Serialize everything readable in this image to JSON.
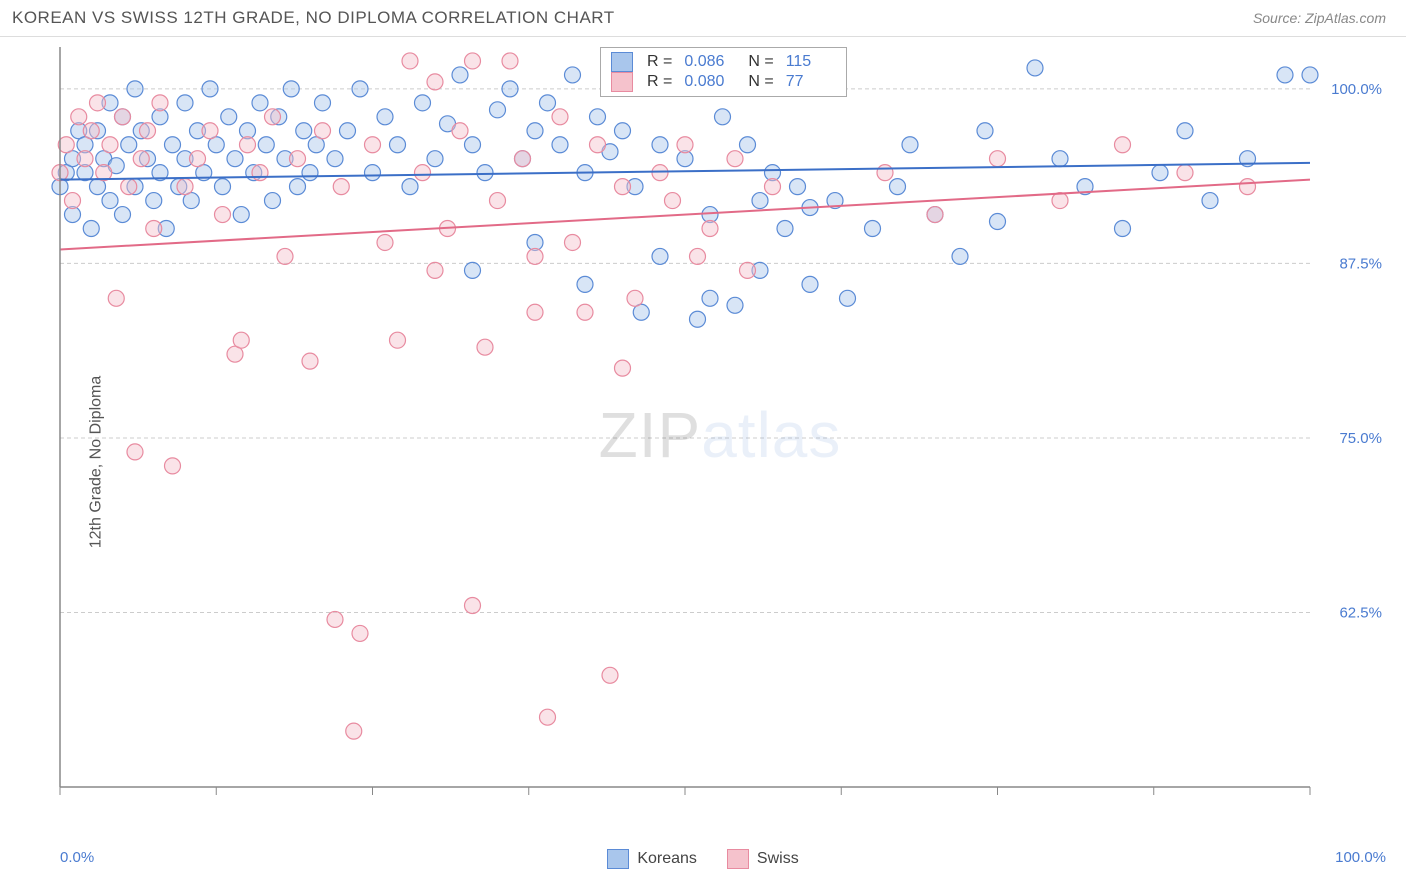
{
  "header": {
    "title": "KOREAN VS SWISS 12TH GRADE, NO DIPLOMA CORRELATION CHART",
    "source": "Source: ZipAtlas.com"
  },
  "chart": {
    "type": "scatter",
    "ylabel": "12th Grade, No Diploma",
    "xlim": [
      0,
      100
    ],
    "ylim": [
      50,
      103
    ],
    "xtick_major": [
      0,
      12.5,
      25,
      37.5,
      50,
      62.5,
      75,
      87.5,
      100
    ],
    "xtick_labels_shown": {
      "0": "0.0%",
      "100": "100.0%"
    },
    "ytick_positions": [
      62.5,
      75,
      87.5,
      100
    ],
    "ytick_labels": [
      "62.5%",
      "75.0%",
      "87.5%",
      "100.0%"
    ],
    "grid_color": "#cccccc",
    "axis_color": "#888888",
    "background_color": "#ffffff",
    "marker_radius": 8,
    "marker_opacity": 0.45,
    "marker_stroke_width": 1.2,
    "line_width": 2,
    "watermark_text_a": "ZIP",
    "watermark_text_b": "atlas",
    "series": [
      {
        "name": "Koreans",
        "color_fill": "#a9c6ec",
        "color_stroke": "#5b8bd6",
        "line_color": "#3b6fc7",
        "R": "0.086",
        "N": "115",
        "trend": {
          "y_at_x0": 93.5,
          "y_at_x100": 94.7
        },
        "points": [
          [
            0,
            93
          ],
          [
            0.5,
            94
          ],
          [
            1,
            95
          ],
          [
            1,
            91
          ],
          [
            1.5,
            97
          ],
          [
            2,
            94
          ],
          [
            2,
            96
          ],
          [
            2.5,
            90
          ],
          [
            3,
            97
          ],
          [
            3,
            93
          ],
          [
            3.5,
            95
          ],
          [
            4,
            99
          ],
          [
            4,
            92
          ],
          [
            4.5,
            94.5
          ],
          [
            5,
            98
          ],
          [
            5,
            91
          ],
          [
            5.5,
            96
          ],
          [
            6,
            93
          ],
          [
            6,
            100
          ],
          [
            6.5,
            97
          ],
          [
            7,
            95
          ],
          [
            7.5,
            92
          ],
          [
            8,
            98
          ],
          [
            8,
            94
          ],
          [
            8.5,
            90
          ],
          [
            9,
            96
          ],
          [
            9.5,
            93
          ],
          [
            10,
            99
          ],
          [
            10,
            95
          ],
          [
            10.5,
            92
          ],
          [
            11,
            97
          ],
          [
            11.5,
            94
          ],
          [
            12,
            100
          ],
          [
            12.5,
            96
          ],
          [
            13,
            93
          ],
          [
            13.5,
            98
          ],
          [
            14,
            95
          ],
          [
            14.5,
            91
          ],
          [
            15,
            97
          ],
          [
            15.5,
            94
          ],
          [
            16,
            99
          ],
          [
            16.5,
            96
          ],
          [
            17,
            92
          ],
          [
            17.5,
            98
          ],
          [
            18,
            95
          ],
          [
            18.5,
            100
          ],
          [
            19,
            93
          ],
          [
            19.5,
            97
          ],
          [
            20,
            94
          ],
          [
            20.5,
            96
          ],
          [
            21,
            99
          ],
          [
            22,
            95
          ],
          [
            23,
            97
          ],
          [
            24,
            100
          ],
          [
            25,
            94
          ],
          [
            26,
            98
          ],
          [
            27,
            96
          ],
          [
            28,
            93
          ],
          [
            29,
            99
          ],
          [
            30,
            95
          ],
          [
            31,
            97.5
          ],
          [
            32,
            101
          ],
          [
            33,
            96
          ],
          [
            34,
            94
          ],
          [
            35,
            98.5
          ],
          [
            36,
            100
          ],
          [
            37,
            95
          ],
          [
            38,
            97
          ],
          [
            39,
            99
          ],
          [
            40,
            96
          ],
          [
            41,
            101
          ],
          [
            42,
            94
          ],
          [
            43,
            98
          ],
          [
            44,
            95.5
          ],
          [
            45,
            97
          ],
          [
            46,
            93
          ],
          [
            46.5,
            84
          ],
          [
            48,
            96
          ],
          [
            50,
            95
          ],
          [
            51,
            83.5
          ],
          [
            52,
            91
          ],
          [
            53,
            98
          ],
          [
            54,
            84.5
          ],
          [
            55,
            96
          ],
          [
            56,
            92
          ],
          [
            57,
            94
          ],
          [
            58,
            90
          ],
          [
            59,
            93
          ],
          [
            60,
            91.5
          ],
          [
            62,
            92
          ],
          [
            63,
            85
          ],
          [
            65,
            90
          ],
          [
            67,
            93
          ],
          [
            68,
            96
          ],
          [
            70,
            91
          ],
          [
            72,
            88
          ],
          [
            74,
            97
          ],
          [
            75,
            90.5
          ],
          [
            78,
            101.5
          ],
          [
            80,
            95
          ],
          [
            82,
            93
          ],
          [
            85,
            90
          ],
          [
            88,
            94
          ],
          [
            90,
            97
          ],
          [
            92,
            92
          ],
          [
            95,
            95
          ],
          [
            98,
            101
          ],
          [
            100,
            101
          ],
          [
            33,
            87
          ],
          [
            38,
            89
          ],
          [
            42,
            86
          ],
          [
            48,
            88
          ],
          [
            52,
            85
          ],
          [
            56,
            87
          ],
          [
            60,
            86
          ]
        ]
      },
      {
        "name": "Swiss",
        "color_fill": "#f5c2cc",
        "color_stroke": "#e88ba0",
        "line_color": "#e26a87",
        "R": "0.080",
        "N": "77",
        "trend": {
          "y_at_x0": 88.5,
          "y_at_x100": 93.5
        },
        "points": [
          [
            0,
            94
          ],
          [
            0.5,
            96
          ],
          [
            1,
            92
          ],
          [
            1.5,
            98
          ],
          [
            2,
            95
          ],
          [
            2.5,
            97
          ],
          [
            3,
            99
          ],
          [
            3.5,
            94
          ],
          [
            4,
            96
          ],
          [
            4.5,
            85
          ],
          [
            5,
            98
          ],
          [
            5.5,
            93
          ],
          [
            6,
            74
          ],
          [
            6.5,
            95
          ],
          [
            7,
            97
          ],
          [
            7.5,
            90
          ],
          [
            8,
            99
          ],
          [
            9,
            73
          ],
          [
            10,
            93
          ],
          [
            11,
            95
          ],
          [
            12,
            97
          ],
          [
            13,
            91
          ],
          [
            14,
            81
          ],
          [
            14.5,
            82
          ],
          [
            15,
            96
          ],
          [
            16,
            94
          ],
          [
            17,
            98
          ],
          [
            18,
            88
          ],
          [
            19,
            95
          ],
          [
            20,
            80.5
          ],
          [
            21,
            97
          ],
          [
            22,
            62
          ],
          [
            22.5,
            93
          ],
          [
            23.5,
            54
          ],
          [
            24,
            61
          ],
          [
            25,
            96
          ],
          [
            26,
            89
          ],
          [
            27,
            82
          ],
          [
            28,
            102
          ],
          [
            29,
            94
          ],
          [
            30,
            100.5
          ],
          [
            31,
            90
          ],
          [
            32,
            97
          ],
          [
            33,
            63
          ],
          [
            33,
            102
          ],
          [
            34,
            81.5
          ],
          [
            35,
            92
          ],
          [
            36,
            102
          ],
          [
            37,
            95
          ],
          [
            38,
            88
          ],
          [
            39,
            55
          ],
          [
            40,
            98
          ],
          [
            41,
            89
          ],
          [
            42,
            84
          ],
          [
            43,
            96
          ],
          [
            44,
            58
          ],
          [
            44,
            102
          ],
          [
            45,
            93
          ],
          [
            46,
            85
          ],
          [
            48,
            94
          ],
          [
            49,
            92
          ],
          [
            50,
            96
          ],
          [
            51,
            88
          ],
          [
            52,
            90
          ],
          [
            54,
            95
          ],
          [
            55,
            87
          ],
          [
            57,
            93
          ],
          [
            66,
            94
          ],
          [
            70,
            91
          ],
          [
            75,
            95
          ],
          [
            80,
            92
          ],
          [
            85,
            96
          ],
          [
            90,
            94
          ],
          [
            95,
            93
          ],
          [
            45,
            80
          ],
          [
            38,
            84
          ],
          [
            30,
            87
          ]
        ]
      }
    ]
  },
  "legend_top": {
    "r_label": "R =",
    "n_label": "N ="
  },
  "bottom_legend": {
    "items": [
      "Koreans",
      "Swiss"
    ]
  }
}
